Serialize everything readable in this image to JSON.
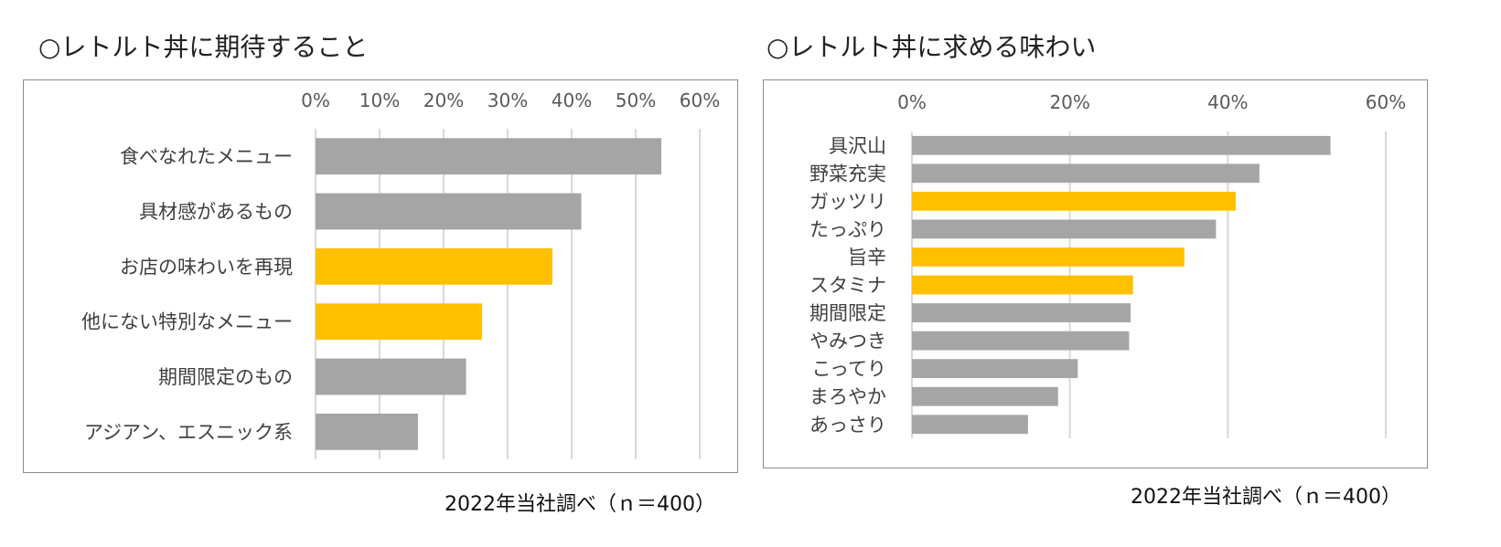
{
  "chart_data": [
    {
      "type": "bar",
      "orientation": "horizontal",
      "title": "○レトルト丼に期待すること",
      "categories": [
        "食べなれたメニュー",
        "具材感があるもの",
        "お店の味わいを再現",
        "他にない特別なメニュー",
        "期間限定のもの",
        "アジアン、エスニック系"
      ],
      "values": [
        54,
        41.5,
        37,
        26,
        23.5,
        16
      ],
      "highlight": [
        false,
        false,
        true,
        true,
        false,
        false
      ],
      "xlim": [
        0,
        60
      ],
      "xticks": [
        "0%",
        "10%",
        "20%",
        "30%",
        "40%",
        "50%",
        "60%"
      ],
      "xtick_values": [
        0,
        10,
        20,
        30,
        40,
        50,
        60
      ],
      "axis_position": "top",
      "grid": true,
      "source_note": "2022年当社調べ（ｎ＝400）"
    },
    {
      "type": "bar",
      "orientation": "horizontal",
      "title": "○レトルト丼に求める味わい",
      "categories": [
        "具沢山",
        "野菜充実",
        "ガッツリ",
        "たっぷり",
        "旨辛",
        "スタミナ",
        "期間限定",
        "やみつき",
        "こってり",
        "まろやか",
        "あっさり"
      ],
      "values": [
        53,
        44,
        41,
        38.5,
        34.5,
        28,
        27.7,
        27.5,
        21,
        18.5,
        14.7
      ],
      "highlight": [
        false,
        false,
        true,
        false,
        true,
        true,
        false,
        false,
        false,
        false,
        false
      ],
      "xlim": [
        0,
        60
      ],
      "xticks": [
        "0%",
        "20%",
        "40%",
        "60%"
      ],
      "xtick_values": [
        0,
        20,
        40,
        60
      ],
      "axis_position": "top",
      "grid": true,
      "source_note": "2022年当社調べ（ｎ＝400）"
    }
  ],
  "colors": {
    "bar": "#a5a5a5",
    "highlight": "#ffc000",
    "grid": "#d9d9d9"
  }
}
